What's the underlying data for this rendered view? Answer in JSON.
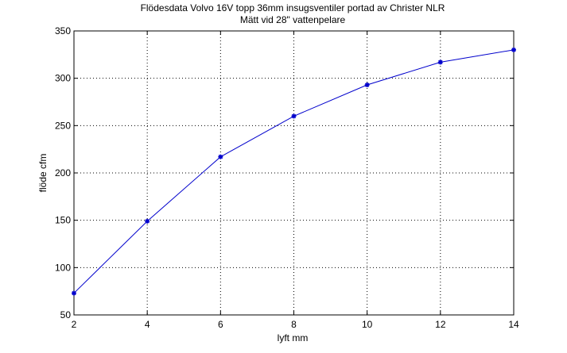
{
  "chart_data": {
    "type": "line",
    "title": "Flödesdata Volvo 16V topp 36mm insugsventiler portad av Christer NLR",
    "subtitle": "Mätt vid 28\" vattenpelare",
    "xlabel": "lyft mm",
    "ylabel": "flöde cfm",
    "xlim": [
      2,
      14
    ],
    "ylim": [
      50,
      350
    ],
    "xticks": [
      2,
      4,
      6,
      8,
      10,
      12,
      14
    ],
    "yticks": [
      50,
      100,
      150,
      200,
      250,
      300,
      350
    ],
    "grid": true,
    "grid_style": "dotted",
    "series": [
      {
        "x": [
          2,
          4,
          6,
          8,
          10,
          12,
          14
        ],
        "y": [
          73,
          149,
          217,
          260,
          293,
          317,
          330
        ],
        "color": "#0000cc",
        "marker": "*"
      }
    ]
  }
}
